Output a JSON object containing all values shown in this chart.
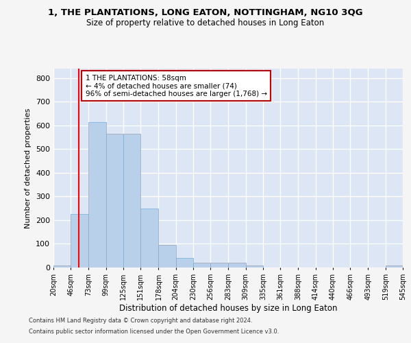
{
  "title": "1, THE PLANTATIONS, LONG EATON, NOTTINGHAM, NG10 3QG",
  "subtitle": "Size of property relative to detached houses in Long Eaton",
  "xlabel": "Distribution of detached houses by size in Long Eaton",
  "ylabel": "Number of detached properties",
  "bar_color": "#b8d0ea",
  "bar_edge_color": "#7aaad0",
  "background_color": "#dce6f5",
  "grid_color": "#ffffff",
  "red_line_x": 58,
  "annotation_text": "1 THE PLANTATIONS: 58sqm\n← 4% of detached houses are smaller (74)\n96% of semi-detached houses are larger (1,768) →",
  "annotation_box_color": "#ffffff",
  "annotation_border_color": "#cc0000",
  "bins": [
    20,
    46,
    73,
    99,
    125,
    151,
    178,
    204,
    230,
    256,
    283,
    309,
    335,
    361,
    388,
    414,
    440,
    466,
    493,
    519,
    545
  ],
  "counts": [
    10,
    225,
    615,
    565,
    565,
    250,
    95,
    42,
    20,
    20,
    20,
    10,
    0,
    0,
    0,
    0,
    0,
    0,
    0,
    10
  ],
  "ylim": [
    0,
    840
  ],
  "yticks": [
    0,
    100,
    200,
    300,
    400,
    500,
    600,
    700,
    800
  ],
  "fig_bgcolor": "#f5f5f5",
  "footnote1": "Contains HM Land Registry data © Crown copyright and database right 2024.",
  "footnote2": "Contains public sector information licensed under the Open Government Licence v3.0."
}
